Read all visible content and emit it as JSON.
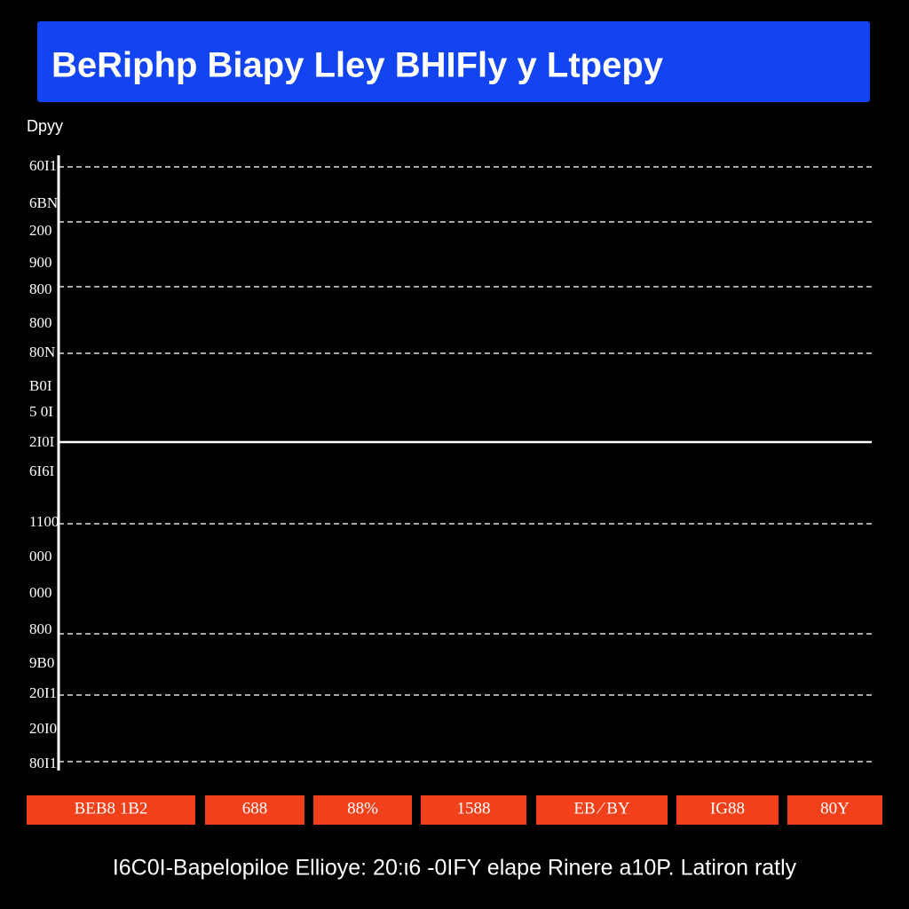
{
  "header": {
    "title": "BeRiphp Biapy Lley BHIFly y Ltpepy"
  },
  "axis_label": "Dpyy",
  "y_labels": [
    "60I1",
    "6BN",
    "200",
    "900",
    "800",
    "800",
    "80N",
    "B0I",
    "5 0I",
    "2I0I",
    "6I6I",
    "1100",
    "000",
    "000",
    "800",
    "9B0",
    "20I1",
    "20I0",
    "80I1"
  ],
  "buttons": [
    "BEB8   1B2",
    "688",
    "88%",
    "1588",
    "EB ⁄  BY",
    "IG88",
    "80Y"
  ],
  "footer": "I6C0I-Bapelopiloe Ellioye: 20:ι6 -0IFY elape Rinere a10P. Latiron ratly"
}
